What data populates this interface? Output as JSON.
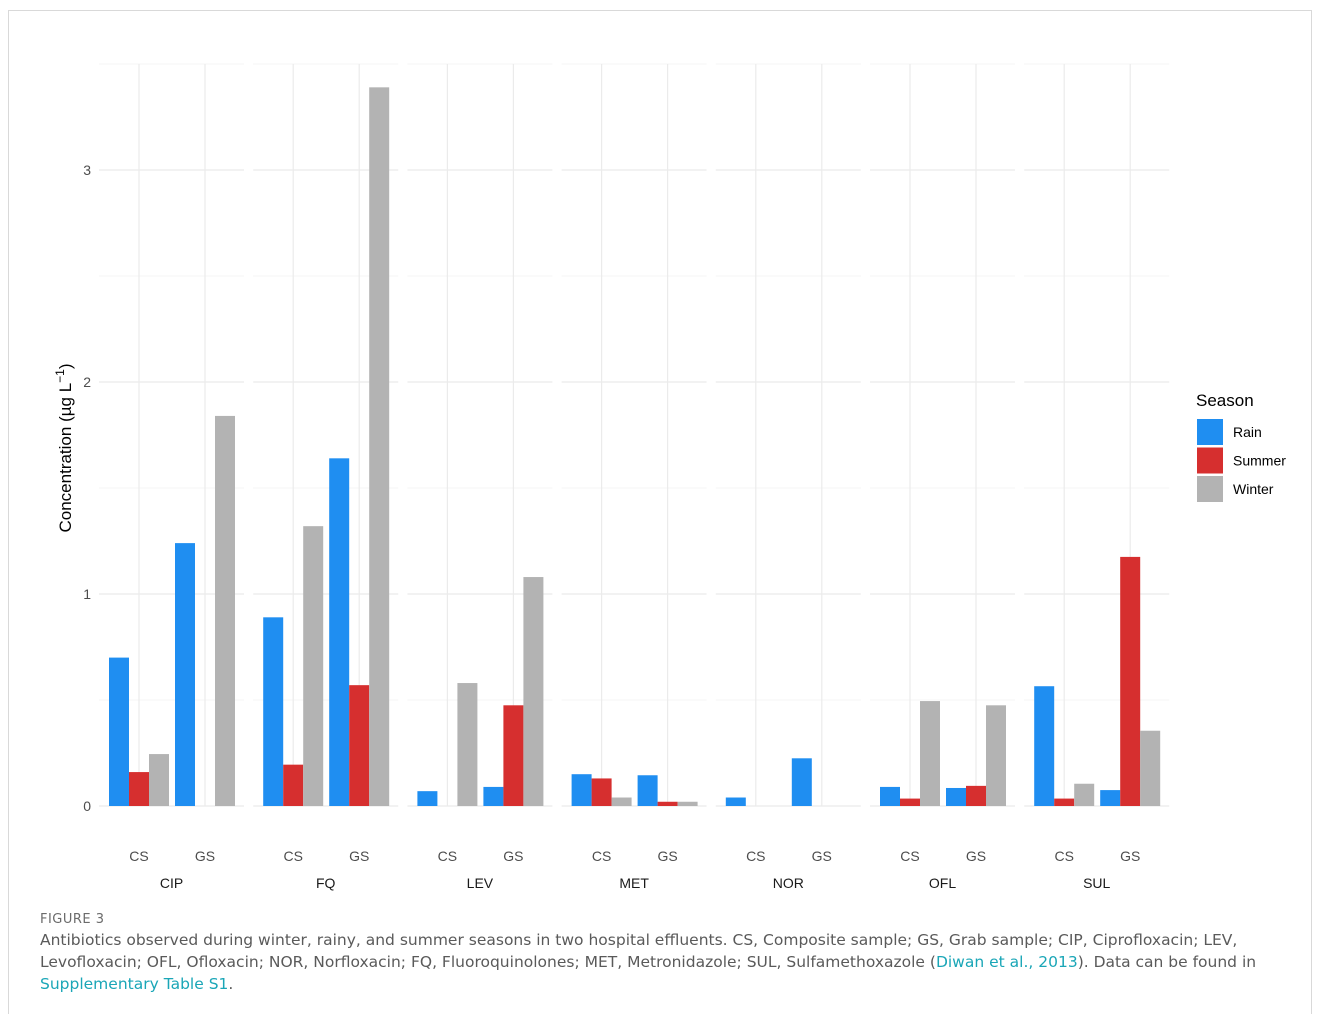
{
  "chart_data": {
    "type": "bar",
    "ylabel": "Concentration (µg L",
    "ylabel_exponent": "−1",
    "ylabel_close": ")",
    "ylim": [
      0,
      3.5
    ],
    "yticks": [
      0,
      1,
      2,
      3
    ],
    "grid": true,
    "legend_title": "Season",
    "legend_position": "right",
    "series": [
      {
        "name": "Rain",
        "color": "#1f8ef1"
      },
      {
        "name": "Summer",
        "color": "#d62f2f"
      },
      {
        "name": "Winter",
        "color": "#b3b3b3"
      }
    ],
    "panels": [
      {
        "name": "CIP",
        "groups": [
          {
            "label": "CS",
            "values": {
              "Rain": 0.7,
              "Summer": 0.16,
              "Winter": 0.245
            }
          },
          {
            "label": "GS",
            "values": {
              "Rain": 1.24,
              "Summer": 0,
              "Winter": 1.84
            }
          }
        ]
      },
      {
        "name": "FQ",
        "groups": [
          {
            "label": "CS",
            "values": {
              "Rain": 0.89,
              "Summer": 0.195,
              "Winter": 1.32
            }
          },
          {
            "label": "GS",
            "values": {
              "Rain": 1.64,
              "Summer": 0.57,
              "Winter": 3.39
            }
          }
        ]
      },
      {
        "name": "LEV",
        "groups": [
          {
            "label": "CS",
            "values": {
              "Rain": 0.07,
              "Summer": 0,
              "Winter": 0.58
            }
          },
          {
            "label": "GS",
            "values": {
              "Rain": 0.09,
              "Summer": 0.475,
              "Winter": 1.08
            }
          }
        ]
      },
      {
        "name": "MET",
        "groups": [
          {
            "label": "CS",
            "values": {
              "Rain": 0.15,
              "Summer": 0.13,
              "Winter": 0.04
            }
          },
          {
            "label": "GS",
            "values": {
              "Rain": 0.145,
              "Summer": 0.02,
              "Winter": 0.02
            }
          }
        ]
      },
      {
        "name": "NOR",
        "groups": [
          {
            "label": "CS",
            "values": {
              "Rain": 0.04,
              "Summer": 0,
              "Winter": 0
            }
          },
          {
            "label": "GS",
            "values": {
              "Rain": 0.225,
              "Summer": 0,
              "Winter": 0
            }
          }
        ]
      },
      {
        "name": "OFL",
        "groups": [
          {
            "label": "CS",
            "values": {
              "Rain": 0.09,
              "Summer": 0.035,
              "Winter": 0.495
            }
          },
          {
            "label": "GS",
            "values": {
              "Rain": 0.085,
              "Summer": 0.095,
              "Winter": 0.475
            }
          }
        ]
      },
      {
        "name": "SUL",
        "groups": [
          {
            "label": "CS",
            "values": {
              "Rain": 0.565,
              "Summer": 0.035,
              "Winter": 0.105
            }
          },
          {
            "label": "GS",
            "values": {
              "Rain": 0.075,
              "Summer": 1.175,
              "Winter": 0.355
            }
          }
        ]
      }
    ]
  },
  "caption": {
    "figure_label": "FIGURE 3",
    "text_before": "Antibiotics observed during winter, rainy, and summer seasons in two hospital effluents. CS, Composite sample; GS, Grab sample; CIP, Ciprofloxacin; LEV, Levofloxacin; OFL, Ofloxacin; NOR, Norfloxacin; FQ, Fluoroquinolones; MET, Metronidazole; SUL, Sulfamethoxazole (",
    "citation_link": "Diwan et al., 2013",
    "text_middle": "). Data can be found in ",
    "table_link": "Supplementary Table S1",
    "text_after": "."
  }
}
